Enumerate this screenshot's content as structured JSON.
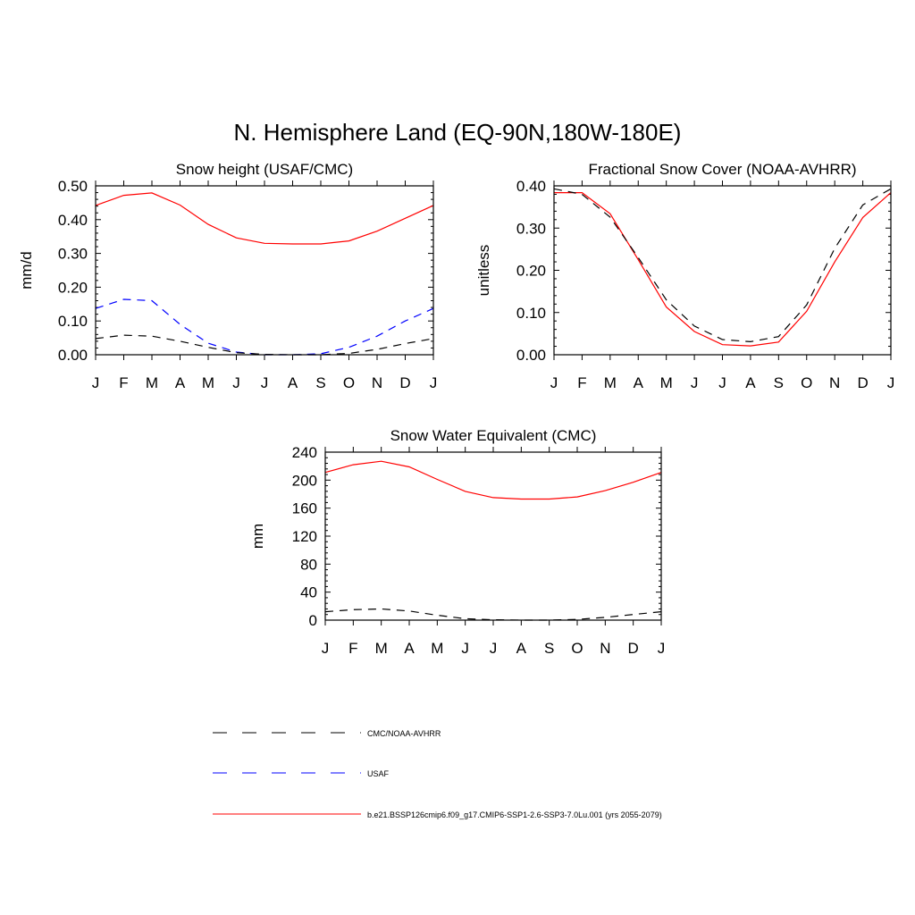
{
  "figure": {
    "title": "N. Hemisphere Land (EQ-90N,180W-180E)"
  },
  "legend": [
    {
      "label": "CMC/NOAA-AVHRR",
      "color": "#000000",
      "style": "dashed"
    },
    {
      "label": "USAF",
      "color": "#0000ff",
      "style": "dashed"
    },
    {
      "label": "b.e21.BSSP126cmip6.f09_g17.CMIP6-SSP1-2.6-SSP3-7.0Lu.001 (yrs 2055-2079)",
      "color": "#ff0000",
      "style": "solid"
    }
  ],
  "chart_data": [
    {
      "type": "line",
      "title": "Snow height (USAF/CMC)",
      "xlabel": "",
      "ylabel": "mm/d",
      "categories": [
        "J",
        "F",
        "M",
        "A",
        "M",
        "J",
        "J",
        "A",
        "S",
        "O",
        "N",
        "D",
        "J"
      ],
      "ylim": [
        0,
        0.5
      ],
      "yticks": [
        "0.00",
        "0.10",
        "0.20",
        "0.30",
        "0.40",
        "0.50"
      ],
      "yticks_values": [
        0,
        0.1,
        0.2,
        0.3,
        0.4,
        0.5
      ],
      "series": [
        {
          "name": "b.e21.BSSP126cmip6.f09_g17.CMIP6-SSP1-2.6-SSP3-7.0Lu.001 (yrs 2055-2079)",
          "color": "#ff0000",
          "style": "solid",
          "values": [
            0.442,
            0.472,
            0.479,
            0.443,
            0.386,
            0.346,
            0.33,
            0.328,
            0.328,
            0.337,
            0.366,
            0.404,
            0.442
          ]
        },
        {
          "name": "USAF",
          "color": "#0000ff",
          "style": "dashed",
          "values": [
            0.137,
            0.164,
            0.16,
            0.09,
            0.034,
            0.008,
            0.0,
            0.0,
            0.003,
            0.022,
            0.055,
            0.1,
            0.137
          ]
        },
        {
          "name": "CMC/NOAA-AVHRR",
          "color": "#000000",
          "style": "dashed",
          "values": [
            0.048,
            0.058,
            0.055,
            0.04,
            0.022,
            0.006,
            0.001,
            0.0,
            0.0,
            0.004,
            0.016,
            0.033,
            0.048
          ]
        }
      ]
    },
    {
      "type": "line",
      "title": "Fractional Snow Cover (NOAA-AVHRR)",
      "xlabel": "",
      "ylabel": "unitless",
      "categories": [
        "J",
        "F",
        "M",
        "A",
        "M",
        "J",
        "J",
        "A",
        "S",
        "O",
        "N",
        "D",
        "J"
      ],
      "ylim": [
        0,
        0.4
      ],
      "yticks": [
        "0.00",
        "0.10",
        "0.20",
        "0.30",
        "0.40"
      ],
      "yticks_values": [
        0,
        0.1,
        0.2,
        0.3,
        0.4
      ],
      "series": [
        {
          "name": "b.e21.BSSP126cmip6.f09_g17.CMIP6-SSP1-2.6-SSP3-7.0Lu.001 (yrs 2055-2079)",
          "color": "#ff0000",
          "style": "solid",
          "values": [
            0.384,
            0.384,
            0.334,
            0.225,
            0.113,
            0.055,
            0.024,
            0.021,
            0.03,
            0.103,
            0.22,
            0.325,
            0.384
          ]
        },
        {
          "name": "CMC/NOAA-AVHRR",
          "color": "#000000",
          "style": "dashed",
          "values": [
            0.393,
            0.38,
            0.326,
            0.23,
            0.13,
            0.068,
            0.036,
            0.031,
            0.043,
            0.118,
            0.252,
            0.355,
            0.393
          ]
        }
      ]
    },
    {
      "type": "line",
      "title": "Snow Water Equivalent (CMC)",
      "xlabel": "",
      "ylabel": "mm",
      "categories": [
        "J",
        "F",
        "M",
        "A",
        "M",
        "J",
        "J",
        "A",
        "S",
        "O",
        "N",
        "D",
        "J"
      ],
      "ylim": [
        0,
        240
      ],
      "yticks": [
        "0",
        "40",
        "80",
        "120",
        "160",
        "200",
        "240"
      ],
      "yticks_values": [
        0,
        40,
        80,
        120,
        160,
        200,
        240
      ],
      "series": [
        {
          "name": "b.e21.BSSP126cmip6.f09_g17.CMIP6-SSP1-2.6-SSP3-7.0Lu.001 (yrs 2055-2079)",
          "color": "#ff0000",
          "style": "solid",
          "values": [
            211,
            222,
            227,
            219,
            201,
            184,
            175,
            173,
            173,
            176,
            185,
            197,
            211
          ]
        },
        {
          "name": "CMC/NOAA-AVHRR",
          "color": "#000000",
          "style": "dashed",
          "values": [
            12,
            15,
            16,
            13,
            7,
            2,
            0.5,
            0,
            0,
            1,
            4,
            8,
            12
          ]
        }
      ]
    }
  ]
}
